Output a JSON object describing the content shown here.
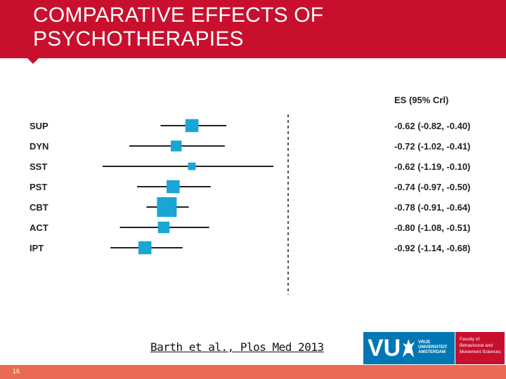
{
  "slide": {
    "title_lines": [
      "COMPARATIVE EFFECTS OF",
      "PSYCHOTHERAPIES"
    ],
    "citation": "Barth et al., Plos Med 2013",
    "page_number": "16"
  },
  "logos": {
    "vu_letters": "VU",
    "vu_name_lines": [
      "VRIJE",
      "UNIVERSITEIT",
      "AMSTERDAM"
    ],
    "faculty_lines": [
      "Faculty of",
      "Behavioural and",
      "Movement Sciences"
    ]
  },
  "colors": {
    "header": "#c8102e",
    "footer": "#ea6a55",
    "marker": "#1aa6d4",
    "vu_blue": "#0077b3"
  },
  "chart_data": {
    "type": "forest",
    "es_column_header": "ES (95% Crl)",
    "reference_line": "dashed vertical line",
    "rows": [
      {
        "label": "SUP",
        "es": -0.62,
        "ci_low": -0.82,
        "ci_high": -0.4,
        "ci_text": "-0.62 (-0.82, -0.40)",
        "weight": 0.55
      },
      {
        "label": "DYN",
        "es": -0.72,
        "ci_low": -1.02,
        "ci_high": -0.41,
        "ci_text": "-0.72 (-1.02, -0.41)",
        "weight": 0.4
      },
      {
        "label": "SST",
        "es": -0.62,
        "ci_low": -1.19,
        "ci_high": -0.1,
        "ci_text": "-0.62 (-1.19, -0.10)",
        "weight": 0.18
      },
      {
        "label": "PST",
        "es": -0.74,
        "ci_low": -0.97,
        "ci_high": -0.5,
        "ci_text": "-0.74 (-0.97, -0.50)",
        "weight": 0.55
      },
      {
        "label": "CBT",
        "es": -0.78,
        "ci_low": -0.91,
        "ci_high": -0.64,
        "ci_text": "-0.78 (-0.91, -0.64)",
        "weight": 1.0
      },
      {
        "label": "ACT",
        "es": -0.8,
        "ci_low": -1.08,
        "ci_high": -0.51,
        "ci_text": "-0.80 (-1.08, -0.51)",
        "weight": 0.45
      },
      {
        "label": "IPT",
        "es": -0.92,
        "ci_low": -1.14,
        "ci_high": -0.68,
        "ci_text": "-0.92 (-1.14, -0.68)",
        "weight": 0.55
      }
    ]
  }
}
